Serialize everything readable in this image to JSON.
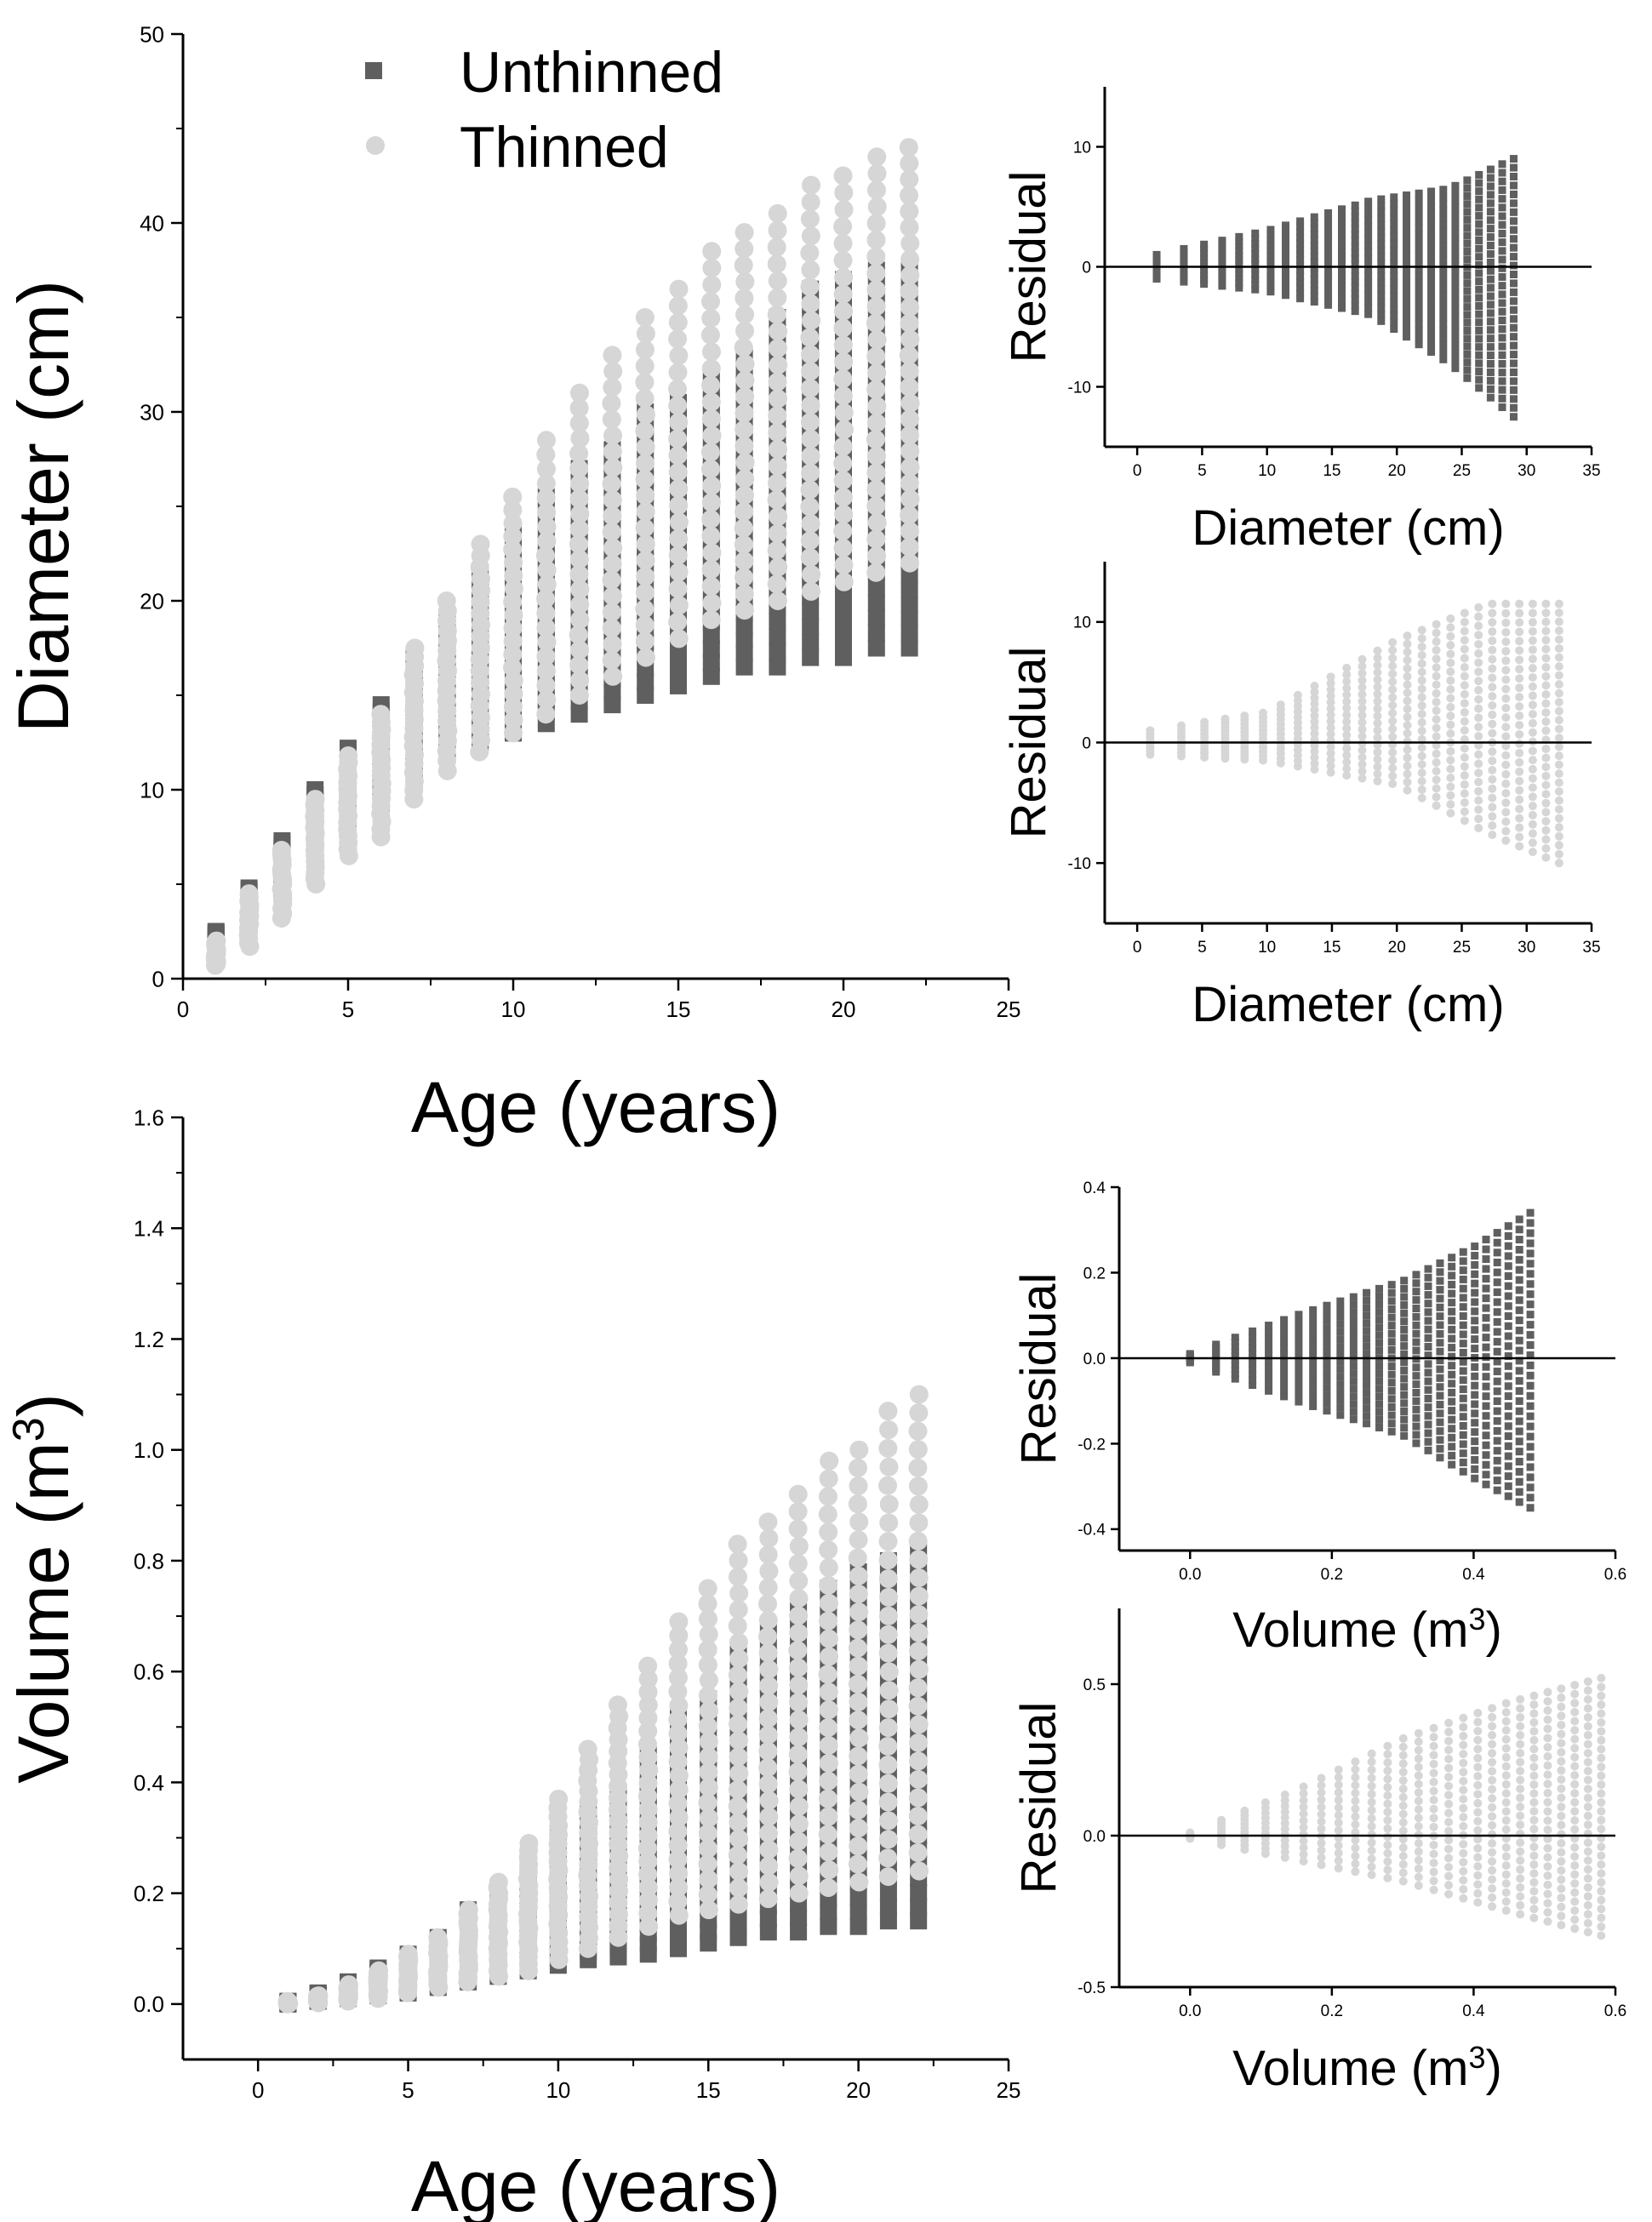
{
  "colors": {
    "unthinned": "#5f5f5f",
    "thinned": "#d6d6d6",
    "axis": "#000000"
  },
  "legend": {
    "unthinned_label": "Unthinned",
    "thinned_label": "Thinned",
    "unthinned_marker": "square",
    "thinned_marker": "circle",
    "placement": "top-left"
  },
  "chart_data": [
    {
      "type": "scatter",
      "xlabel": "Age (years)",
      "ylabel": "Diameter (cm)",
      "xlim": [
        0,
        25
      ],
      "ylim": [
        0,
        50
      ],
      "xticks": [
        0,
        5,
        10,
        15,
        20,
        25
      ],
      "yticks": [
        0,
        10,
        20,
        30,
        40,
        50
      ],
      "ages": [
        1,
        2,
        3,
        4,
        5,
        6,
        7,
        8,
        9,
        10,
        11,
        12,
        13,
        14,
        15,
        16,
        17,
        18,
        19,
        20,
        21,
        22
      ],
      "series": [
        {
          "name": "Unthinned",
          "marker": "square",
          "min": [
            1.5,
            3,
            4.5,
            6,
            7.5,
            9,
            10.5,
            12,
            12.5,
            13,
            13.5,
            14,
            14.5,
            15,
            15.5,
            16,
            16.5,
            16.5,
            17,
            17,
            17.5,
            17.5
          ],
          "max": [
            2.5,
            4.8,
            7.3,
            10,
            12.2,
            14.5,
            17,
            19,
            21.5,
            23.5,
            25.5,
            27,
            28,
            30,
            30.5,
            32,
            33,
            35,
            36.5,
            37,
            37.5,
            37.5
          ]
        },
        {
          "name": "Thinned",
          "marker": "circle",
          "min": [
            0.7,
            1.7,
            3.2,
            5,
            6.5,
            7.5,
            9.5,
            11,
            12,
            13,
            14,
            15,
            16,
            17,
            18,
            19,
            19.5,
            20,
            20.5,
            21,
            21.5,
            22
          ],
          "max": [
            2,
            4.5,
            6.8,
            9.5,
            11.8,
            14,
            17.5,
            20,
            23,
            25.5,
            28.5,
            31,
            33,
            35,
            36.5,
            38.5,
            39.5,
            40.5,
            42,
            42.5,
            43.5,
            44
          ]
        }
      ]
    },
    {
      "type": "scatter",
      "xlabel": "Diameter (cm)",
      "ylabel": "Residual",
      "xlim": [
        -2.5,
        35
      ],
      "ylim": [
        -15,
        15
      ],
      "xticks": [
        0,
        5,
        10,
        15,
        20,
        25,
        30,
        35
      ],
      "yticks": [
        -10,
        0,
        10
      ],
      "series": [
        {
          "name": "Unthinned",
          "marker": "square",
          "x_range": [
            1.5,
            29
          ],
          "residual_envelope": [
            [
              1.5,
              1
            ],
            [
              10,
              3
            ],
            [
              18,
              5.5
            ],
            [
              24,
              6.5
            ],
            [
              29,
              9
            ],
            [
              29,
              -12.5
            ],
            [
              24,
              -8
            ],
            [
              18,
              -4
            ],
            [
              10,
              -2
            ],
            [
              1.5,
              -1
            ]
          ]
        }
      ]
    },
    {
      "type": "scatter",
      "xlabel": "Diameter (cm)",
      "ylabel": "Residual",
      "xlim": [
        -2.5,
        35
      ],
      "ylim": [
        -15,
        15
      ],
      "xticks": [
        0,
        5,
        10,
        15,
        20,
        25,
        30,
        35
      ],
      "yticks": [
        -10,
        0,
        10
      ],
      "series": [
        {
          "name": "Thinned",
          "marker": "circle",
          "x_range": [
            1,
            32.5
          ],
          "residual_envelope": [
            [
              1,
              1
            ],
            [
              10,
              2.5
            ],
            [
              20,
              8.5
            ],
            [
              27,
              11.5
            ],
            [
              32.5,
              11.5
            ],
            [
              32.5,
              -10
            ],
            [
              27,
              -7.5
            ],
            [
              20,
              -3.5
            ],
            [
              10,
              -1.5
            ],
            [
              1,
              -1
            ]
          ]
        }
      ]
    },
    {
      "type": "scatter",
      "xlabel": "Age (years)",
      "ylabel": "Volume (m³)",
      "xlim": [
        -2.5,
        25
      ],
      "ylim": [
        -0.1,
        1.6
      ],
      "xticks": [
        0,
        5,
        10,
        15,
        20,
        25
      ],
      "yticks": [
        0.0,
        0.2,
        0.4,
        0.6,
        0.8,
        1.0,
        1.2,
        1.4,
        1.6
      ],
      "ages": [
        1,
        2,
        3,
        4,
        5,
        6,
        7,
        8,
        9,
        10,
        11,
        12,
        13,
        14,
        15,
        16,
        17,
        18,
        19,
        20,
        21,
        22
      ],
      "series": [
        {
          "name": "Unthinned",
          "marker": "square",
          "min": [
            0,
            0.005,
            0.01,
            0.015,
            0.02,
            0.03,
            0.04,
            0.05,
            0.06,
            0.07,
            0.08,
            0.085,
            0.09,
            0.1,
            0.11,
            0.12,
            0.13,
            0.13,
            0.14,
            0.14,
            0.15,
            0.15
          ],
          "max": [
            0.005,
            0.02,
            0.04,
            0.065,
            0.09,
            0.12,
            0.17,
            0.21,
            0.26,
            0.31,
            0.35,
            0.38,
            0.45,
            0.52,
            0.55,
            0.64,
            0.67,
            0.71,
            0.75,
            0.78,
            0.8,
            0.82
          ]
        },
        {
          "name": "Thinned",
          "marker": "circle",
          "min": [
            0,
            0.002,
            0.005,
            0.01,
            0.02,
            0.03,
            0.04,
            0.05,
            0.06,
            0.08,
            0.1,
            0.12,
            0.14,
            0.16,
            0.17,
            0.18,
            0.19,
            0.2,
            0.21,
            0.22,
            0.23,
            0.24
          ],
          "max": [
            0.005,
            0.015,
            0.035,
            0.06,
            0.09,
            0.12,
            0.17,
            0.22,
            0.29,
            0.37,
            0.46,
            0.54,
            0.61,
            0.69,
            0.75,
            0.83,
            0.87,
            0.92,
            0.98,
            1.0,
            1.07,
            1.1
          ]
        }
      ]
    },
    {
      "type": "scatter",
      "xlabel": "Volume (m³)",
      "ylabel": "Residual",
      "xlim": [
        -0.1,
        0.6
      ],
      "ylim": [
        -0.45,
        0.4
      ],
      "xticks": [
        0.0,
        0.2,
        0.4,
        0.6
      ],
      "yticks": [
        -0.4,
        -0.2,
        0.0,
        0.2,
        0.4
      ],
      "series": [
        {
          "name": "Unthinned",
          "marker": "square",
          "x_range": [
            0,
            0.48
          ],
          "residual_envelope": [
            [
              0,
              0.01
            ],
            [
              0.15,
              0.1
            ],
            [
              0.3,
              0.18
            ],
            [
              0.4,
              0.26
            ],
            [
              0.48,
              0.34
            ],
            [
              0.48,
              -0.35
            ],
            [
              0.4,
              -0.28
            ],
            [
              0.3,
              -0.18
            ],
            [
              0.15,
              -0.1
            ],
            [
              0,
              -0.01
            ]
          ]
        }
      ]
    },
    {
      "type": "scatter",
      "xlabel": "Volume (m³)",
      "ylabel": "Residual",
      "xlim": [
        -0.1,
        0.6
      ],
      "ylim": [
        -0.5,
        0.75
      ],
      "xticks": [
        0.0,
        0.2,
        0.4,
        0.6
      ],
      "yticks": [
        -0.5,
        0.0,
        0.5
      ],
      "series": [
        {
          "name": "Thinned",
          "marker": "circle",
          "x_range": [
            0,
            0.58
          ],
          "residual_envelope": [
            [
              0,
              0.01
            ],
            [
              0.15,
              0.15
            ],
            [
              0.3,
              0.32
            ],
            [
              0.45,
              0.44
            ],
            [
              0.58,
              0.52
            ],
            [
              0.58,
              -0.33
            ],
            [
              0.45,
              -0.25
            ],
            [
              0.3,
              -0.15
            ],
            [
              0.15,
              -0.08
            ],
            [
              0,
              -0.01
            ]
          ]
        }
      ]
    }
  ]
}
